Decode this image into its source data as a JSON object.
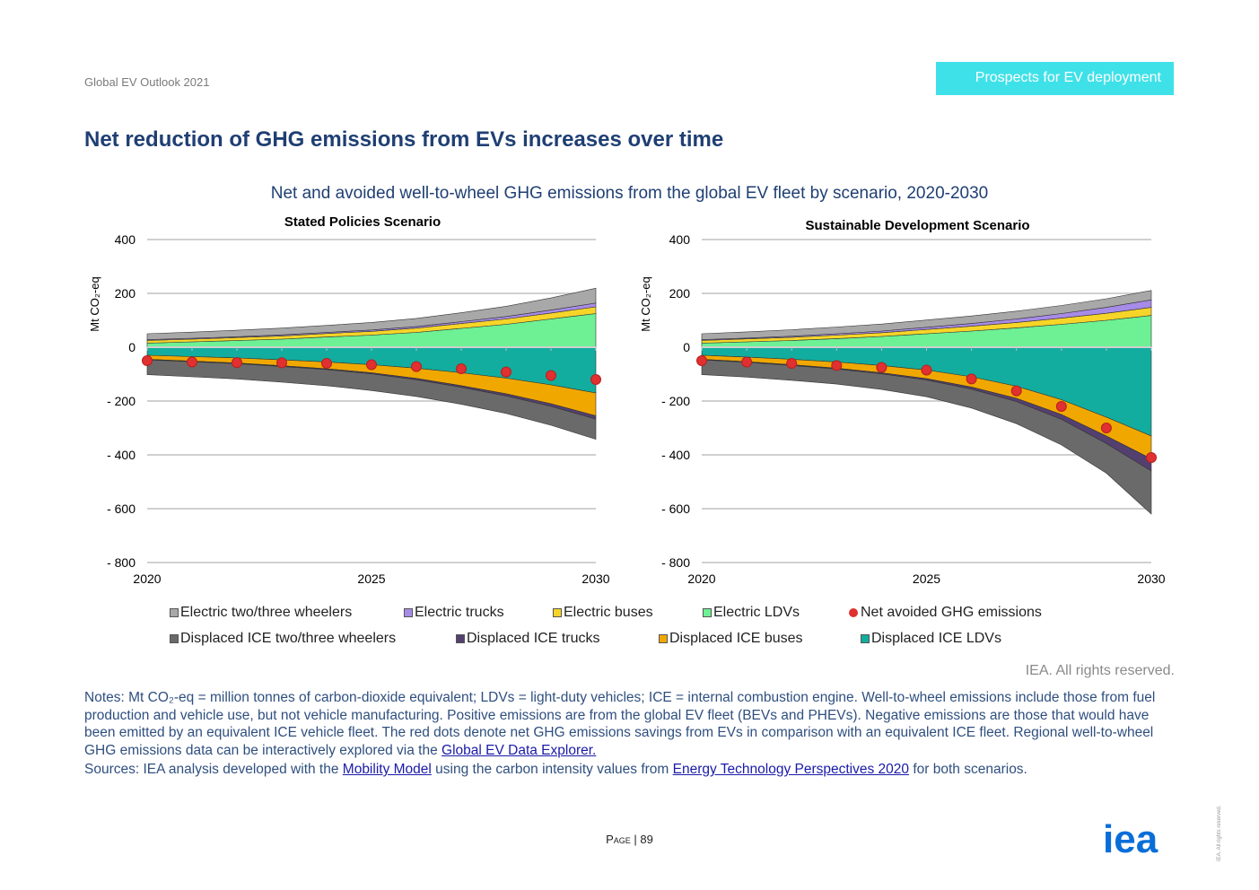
{
  "header": {
    "doc_title": "Global EV Outlook 2021",
    "section_tag": "Prospects for EV deployment"
  },
  "page_title": "Net reduction of GHG emissions from EVs increases over time",
  "figure_title": "Net and avoided well-to-wheel GHG emissions from the global EV fleet by scenario, 2020-2030",
  "chart_data": [
    {
      "type": "area",
      "title": "Stated Policies Scenario",
      "ylabel": "Mt CO₂-eq",
      "ylim": [
        -800,
        400
      ],
      "yticks": [
        400,
        200,
        0,
        -200,
        -400,
        -600,
        -800
      ],
      "ytick_labels": [
        "400",
        "200",
        "0",
        "- 200",
        "- 400",
        "- 600",
        "- 800"
      ],
      "x": [
        2020,
        2021,
        2022,
        2023,
        2024,
        2025,
        2026,
        2027,
        2028,
        2029,
        2030
      ],
      "xtick_labels": [
        "2020",
        "2025",
        "2030"
      ],
      "grid": true,
      "series_positive": [
        {
          "name": "Electric LDVs",
          "color": "#6ef094",
          "values": [
            15,
            20,
            25,
            30,
            38,
            45,
            55,
            70,
            85,
            105,
            125
          ]
        },
        {
          "name": "Electric buses",
          "color": "#f7d528",
          "values": [
            10,
            10,
            11,
            12,
            13,
            14,
            16,
            18,
            20,
            22,
            25
          ]
        },
        {
          "name": "Electric trucks",
          "color": "#a78be8",
          "values": [
            3,
            3,
            3,
            4,
            4,
            5,
            6,
            7,
            9,
            11,
            14
          ]
        },
        {
          "name": "Electric two/three wheelers",
          "color": "#a8a8a8",
          "values": [
            22,
            23,
            24,
            25,
            26,
            28,
            30,
            33,
            38,
            45,
            55
          ]
        }
      ],
      "series_negative": [
        {
          "name": "Displaced ICE LDVs",
          "color": "#12ad9e",
          "values": [
            -30,
            -35,
            -40,
            -47,
            -55,
            -65,
            -78,
            -95,
            -115,
            -140,
            -170
          ]
        },
        {
          "name": "Displaced ICE buses",
          "color": "#f0a800",
          "values": [
            -15,
            -17,
            -19,
            -22,
            -25,
            -30,
            -38,
            -48,
            -58,
            -70,
            -85
          ]
        },
        {
          "name": "Displaced ICE trucks",
          "color": "#54406f",
          "values": [
            -2,
            -2,
            -2,
            -3,
            -3,
            -4,
            -5,
            -6,
            -8,
            -10,
            -12
          ]
        },
        {
          "name": "Displaced ICE two/three wheelers",
          "color": "#6a6a6a",
          "values": [
            -55,
            -56,
            -57,
            -58,
            -60,
            -62,
            -62,
            -63,
            -65,
            -70,
            -75
          ]
        }
      ],
      "net": {
        "name": "Net avoided GHG emissions",
        "color": "#e03030",
        "values": [
          -50,
          -55,
          -57,
          -58,
          -60,
          -65,
          -72,
          -80,
          -92,
          -105,
          -120
        ]
      }
    },
    {
      "type": "area",
      "title": "Sustainable Development Scenario",
      "ylabel": "Mt CO₂-eq",
      "ylim": [
        -800,
        400
      ],
      "yticks": [
        400,
        200,
        0,
        -200,
        -400,
        -600,
        -800
      ],
      "ytick_labels": [
        "400",
        "200",
        "0",
        "- 200",
        "- 400",
        "- 600",
        "- 800"
      ],
      "x": [
        2020,
        2021,
        2022,
        2023,
        2024,
        2025,
        2026,
        2027,
        2028,
        2029,
        2030
      ],
      "xtick_labels": [
        "2020",
        "2025",
        "2030"
      ],
      "grid": true,
      "series_positive": [
        {
          "name": "Electric LDVs",
          "color": "#6ef094",
          "values": [
            15,
            20,
            25,
            32,
            40,
            50,
            60,
            72,
            85,
            100,
            118
          ]
        },
        {
          "name": "Electric buses",
          "color": "#f7d528",
          "values": [
            10,
            11,
            12,
            13,
            14,
            16,
            18,
            20,
            23,
            26,
            30
          ]
        },
        {
          "name": "Electric trucks",
          "color": "#a78be8",
          "values": [
            3,
            3,
            4,
            5,
            6,
            8,
            10,
            13,
            17,
            22,
            28
          ]
        },
        {
          "name": "Electric two/three wheelers",
          "color": "#a8a8a8",
          "values": [
            22,
            23,
            24,
            25,
            26,
            27,
            28,
            29,
            30,
            32,
            35
          ]
        }
      ],
      "series_negative": [
        {
          "name": "Displaced ICE LDVs",
          "color": "#12ad9e",
          "values": [
            -30,
            -37,
            -45,
            -55,
            -68,
            -85,
            -110,
            -145,
            -195,
            -260,
            -330
          ]
        },
        {
          "name": "Displaced ICE buses",
          "color": "#f0a800",
          "values": [
            -15,
            -17,
            -20,
            -23,
            -27,
            -32,
            -38,
            -45,
            -55,
            -70,
            -85
          ]
        },
        {
          "name": "Displaced ICE trucks",
          "color": "#54406f",
          "values": [
            -2,
            -2,
            -3,
            -3,
            -4,
            -5,
            -8,
            -12,
            -18,
            -28,
            -45
          ]
        },
        {
          "name": "Displaced ICE two/three wheelers",
          "color": "#6a6a6a",
          "values": [
            -55,
            -55,
            -55,
            -56,
            -58,
            -62,
            -70,
            -82,
            -95,
            -110,
            -160
          ]
        }
      ],
      "net": {
        "name": "Net avoided GHG emissions",
        "color": "#e03030",
        "values": [
          -50,
          -55,
          -60,
          -68,
          -75,
          -85,
          -118,
          -162,
          -220,
          -300,
          -410
        ]
      }
    }
  ],
  "legend": [
    {
      "label": "Electric two/three wheelers",
      "color": "#a8a8a8",
      "kind": "swatch"
    },
    {
      "label": "Electric trucks",
      "color": "#a78be8",
      "kind": "swatch"
    },
    {
      "label": "Electric buses",
      "color": "#f7d528",
      "kind": "swatch"
    },
    {
      "label": "Electric LDVs",
      "color": "#6ef094",
      "kind": "swatch"
    },
    {
      "label": "Net avoided GHG emissions",
      "color": "#e03030",
      "kind": "dot"
    },
    {
      "label": "Displaced ICE two/three wheelers",
      "color": "#6a6a6a",
      "kind": "swatch"
    },
    {
      "label": "Displaced ICE trucks",
      "color": "#54406f",
      "kind": "swatch"
    },
    {
      "label": "Displaced ICE buses",
      "color": "#f0a800",
      "kind": "swatch"
    },
    {
      "label": "Displaced ICE LDVs",
      "color": "#12ad9e",
      "kind": "swatch"
    }
  ],
  "rights": "IEA. All rights reserved.",
  "notes": {
    "text": "Notes: Mt CO₂-eq = million tonnes of carbon-dioxide equivalent; LDVs = light-duty vehicles; ICE = internal combustion engine. Well-to-wheel emissions include those from fuel production and vehicle use, but not vehicle manufacturing. Positive emissions are from the global EV fleet (BEVs and PHEVs). Negative emissions are those that would have been emitted by an equivalent ICE vehicle fleet. The red dots denote net GHG emissions savings from EVs in comparison with an equivalent ICE fleet. Regional well-to-wheel GHG emissions data can be interactively explored via the ",
    "link": "Global EV Data Explorer."
  },
  "sources": {
    "prefix": "Sources: IEA analysis developed with the ",
    "link1": "Mobility Model",
    "middle": " using the carbon intensity values from ",
    "link2": "Energy Technology Perspectives 2020",
    "suffix": " for both scenarios."
  },
  "footer": {
    "page_label": "Page",
    "separator": " | ",
    "page_number": "89",
    "logo_text": "iea",
    "side_rights": "IEA. All rights reserved."
  },
  "colors": {
    "title_blue": "#1f3f73",
    "tag_cyan": "#3fe1e8",
    "logo_blue": "#0a6ed8"
  }
}
